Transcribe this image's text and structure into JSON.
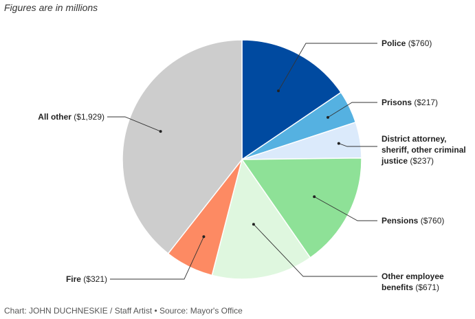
{
  "subtitle": "Figures are in millions",
  "credit": "Chart: JOHN DUCHNESKIE / Staff Artist • Source: Mayor's Office",
  "chart_data": {
    "type": "pie",
    "title": "",
    "subtitle": "Figures are in millions",
    "start": "12 o'clock",
    "direction": "clockwise",
    "slices": [
      {
        "label": "Police",
        "value": 760,
        "color": "#004aa0",
        "lines": [
          {
            "name": "Police",
            "value": " ($760)"
          }
        ]
      },
      {
        "label": "Prisons",
        "value": 217,
        "color": "#55b1e1",
        "lines": [
          {
            "name": "Prisons",
            "value": " ($217)"
          }
        ]
      },
      {
        "label": "District attorney, sheriff, other criminal justice",
        "value": 237,
        "color": "#dbeafb",
        "lines": [
          {
            "name": "District attorney,",
            "value": ""
          },
          {
            "name": "sheriff, other criminal",
            "value": ""
          },
          {
            "name": "justice",
            "value": " ($237)"
          }
        ]
      },
      {
        "label": "Pensions",
        "value": 760,
        "color": "#8ee197",
        "lines": [
          {
            "name": "Pensions",
            "value": " ($760)"
          }
        ]
      },
      {
        "label": "Other employee benefits",
        "value": 671,
        "color": "#dff7df",
        "lines": [
          {
            "name": "Other employee",
            "value": ""
          },
          {
            "name": "benefits",
            "value": " ($671)"
          }
        ]
      },
      {
        "label": "Fire",
        "value": 321,
        "color": "#fd8a63",
        "lines": [
          {
            "name": "Fire",
            "value": " ($321)"
          }
        ]
      },
      {
        "label": "All other",
        "value": 1929,
        "color": "#cdcdcd",
        "lines": [
          {
            "name": "All other",
            "value": " ($1,929)"
          }
        ]
      }
    ]
  }
}
